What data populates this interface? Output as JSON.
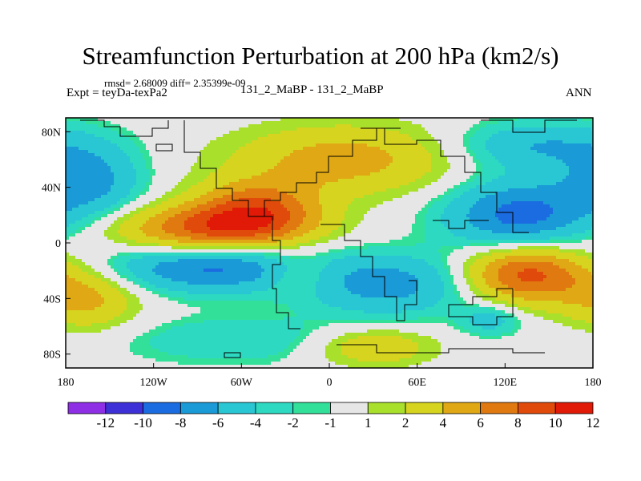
{
  "header": {
    "title": "Streamfunction Perturbation at 200 hPa (km2/s)",
    "stats": "rmsd= 2.68009 diff= 2.35399e-09",
    "experiment": "Expt = teyDa-texPa2",
    "center_label": "131_2_MaBP - 131_2_MaBP",
    "season": "ANN"
  },
  "chart_data": {
    "type": "heatmap",
    "title": "Streamfunction Perturbation at 200 hPa (km2/s)",
    "units": "km2/s",
    "x_range": [
      -180,
      180
    ],
    "y_range": [
      -90,
      90
    ],
    "x_ticks": [
      {
        "value": -180,
        "label": "180"
      },
      {
        "value": -120,
        "label": "120W"
      },
      {
        "value": -60,
        "label": "60W"
      },
      {
        "value": 0,
        "label": "0"
      },
      {
        "value": 60,
        "label": "60E"
      },
      {
        "value": 120,
        "label": "120E"
      },
      {
        "value": 180,
        "label": "180"
      }
    ],
    "y_ticks": [
      {
        "value": 80,
        "label": "80N"
      },
      {
        "value": 40,
        "label": "40N"
      },
      {
        "value": 0,
        "label": "0"
      },
      {
        "value": -40,
        "label": "40S"
      },
      {
        "value": -80,
        "label": "80S"
      }
    ],
    "levels": [
      -12,
      -10,
      -8,
      -6,
      -4,
      -2,
      -1,
      1,
      2,
      4,
      6,
      8,
      10,
      12
    ],
    "colorbar_labels": [
      "-12",
      "-10",
      "-8",
      "-6",
      "-4",
      "-2",
      "-1",
      "1",
      "2",
      "4",
      "6",
      "8",
      "10",
      "12"
    ],
    "colors": [
      "#8e2fe6",
      "#3c30d6",
      "#1a6ce0",
      "#1a9ad6",
      "#29c6d4",
      "#2dd9c1",
      "#33e09a",
      "#e6e6e6",
      "#a9e02c",
      "#d6d41e",
      "#e0a814",
      "#e07a10",
      "#e04a0a",
      "#e01a06"
    ],
    "field_centers": [
      {
        "lon": -165,
        "lat": 45,
        "value": -5,
        "sx": 25,
        "sy": 18
      },
      {
        "lon": -165,
        "lat": -40,
        "value": 4.5,
        "sx": 25,
        "sy": 16
      },
      {
        "lon": -80,
        "lat": 10,
        "value": 8,
        "sx": 45,
        "sy": 12
      },
      {
        "lon": -50,
        "lat": 25,
        "value": 7,
        "sx": 30,
        "sy": 14
      },
      {
        "lon": 10,
        "lat": 60,
        "value": 5,
        "sx": 55,
        "sy": 18
      },
      {
        "lon": -80,
        "lat": -18,
        "value": -6.5,
        "sx": 50,
        "sy": 12
      },
      {
        "lon": -20,
        "lat": -22,
        "value": 3,
        "sx": 18,
        "sy": 10
      },
      {
        "lon": 40,
        "lat": -30,
        "value": -5,
        "sx": 40,
        "sy": 15
      },
      {
        "lon": 30,
        "lat": -75,
        "value": 4,
        "sx": 30,
        "sy": 10
      },
      {
        "lon": -60,
        "lat": -70,
        "value": -2,
        "sx": 60,
        "sy": 12
      },
      {
        "lon": 130,
        "lat": 20,
        "value": -7,
        "sx": 35,
        "sy": 18
      },
      {
        "lon": 140,
        "lat": 70,
        "value": -4,
        "sx": 40,
        "sy": 12
      },
      {
        "lon": 135,
        "lat": -22,
        "value": 9,
        "sx": 30,
        "sy": 15
      },
      {
        "lon": 110,
        "lat": -55,
        "value": -3,
        "sx": 15,
        "sy": 8
      }
    ]
  }
}
